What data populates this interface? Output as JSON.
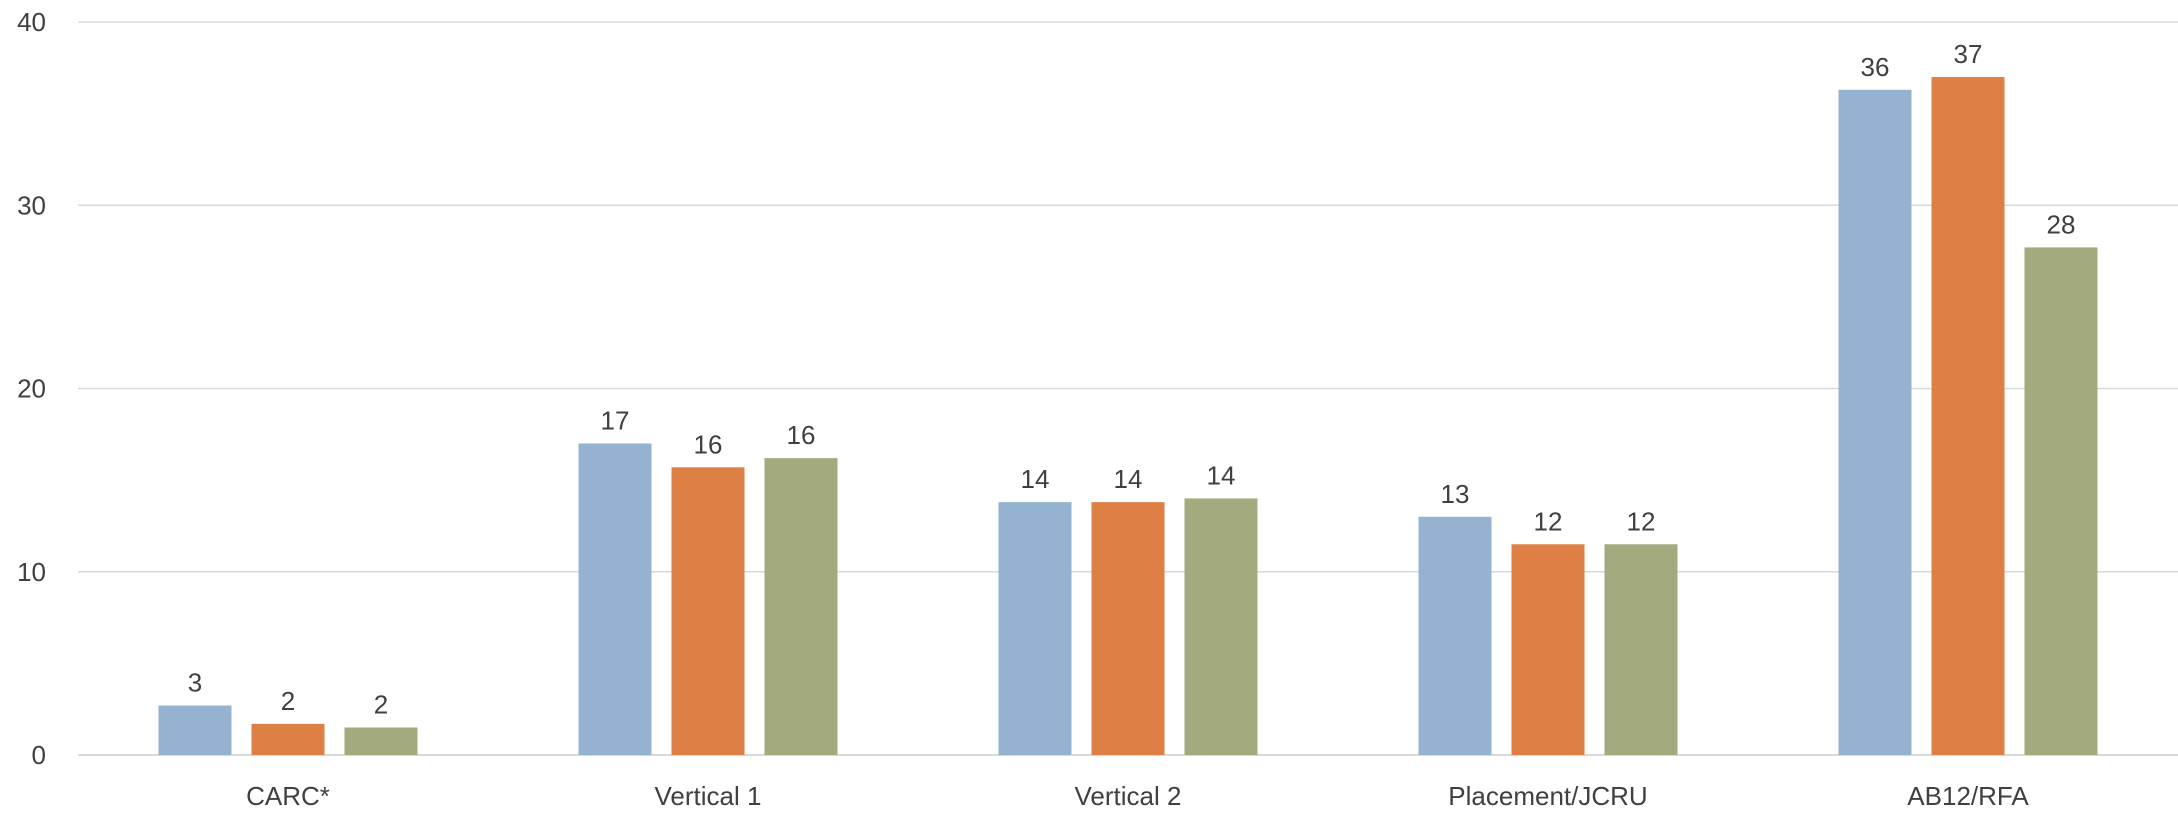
{
  "chart_data": {
    "type": "bar",
    "title": "",
    "xlabel": "",
    "ylabel": "",
    "categories": [
      "CARC*",
      "Vertical 1",
      "Vertical 2",
      "Placement/JCRU",
      "AB12/RFA"
    ],
    "series": [
      {
        "color": "#95b3d0",
        "values": [
          2.7,
          17.0,
          13.8,
          13.0,
          36.3
        ],
        "labels": [
          "3",
          "17",
          "14",
          "13",
          "36"
        ]
      },
      {
        "color": "#de8046",
        "values": [
          1.7,
          15.7,
          13.8,
          11.5,
          37.0
        ],
        "labels": [
          "2",
          "16",
          "14",
          "12",
          "37"
        ]
      },
      {
        "color": "#a2aa7e",
        "values": [
          1.5,
          16.2,
          14.0,
          11.5,
          27.7
        ],
        "labels": [
          "2",
          "16",
          "14",
          "12",
          "28"
        ]
      }
    ],
    "ylim": [
      0,
      40
    ],
    "yticks": [
      0,
      10,
      20,
      30,
      40
    ],
    "grid": true,
    "legend": "none"
  }
}
